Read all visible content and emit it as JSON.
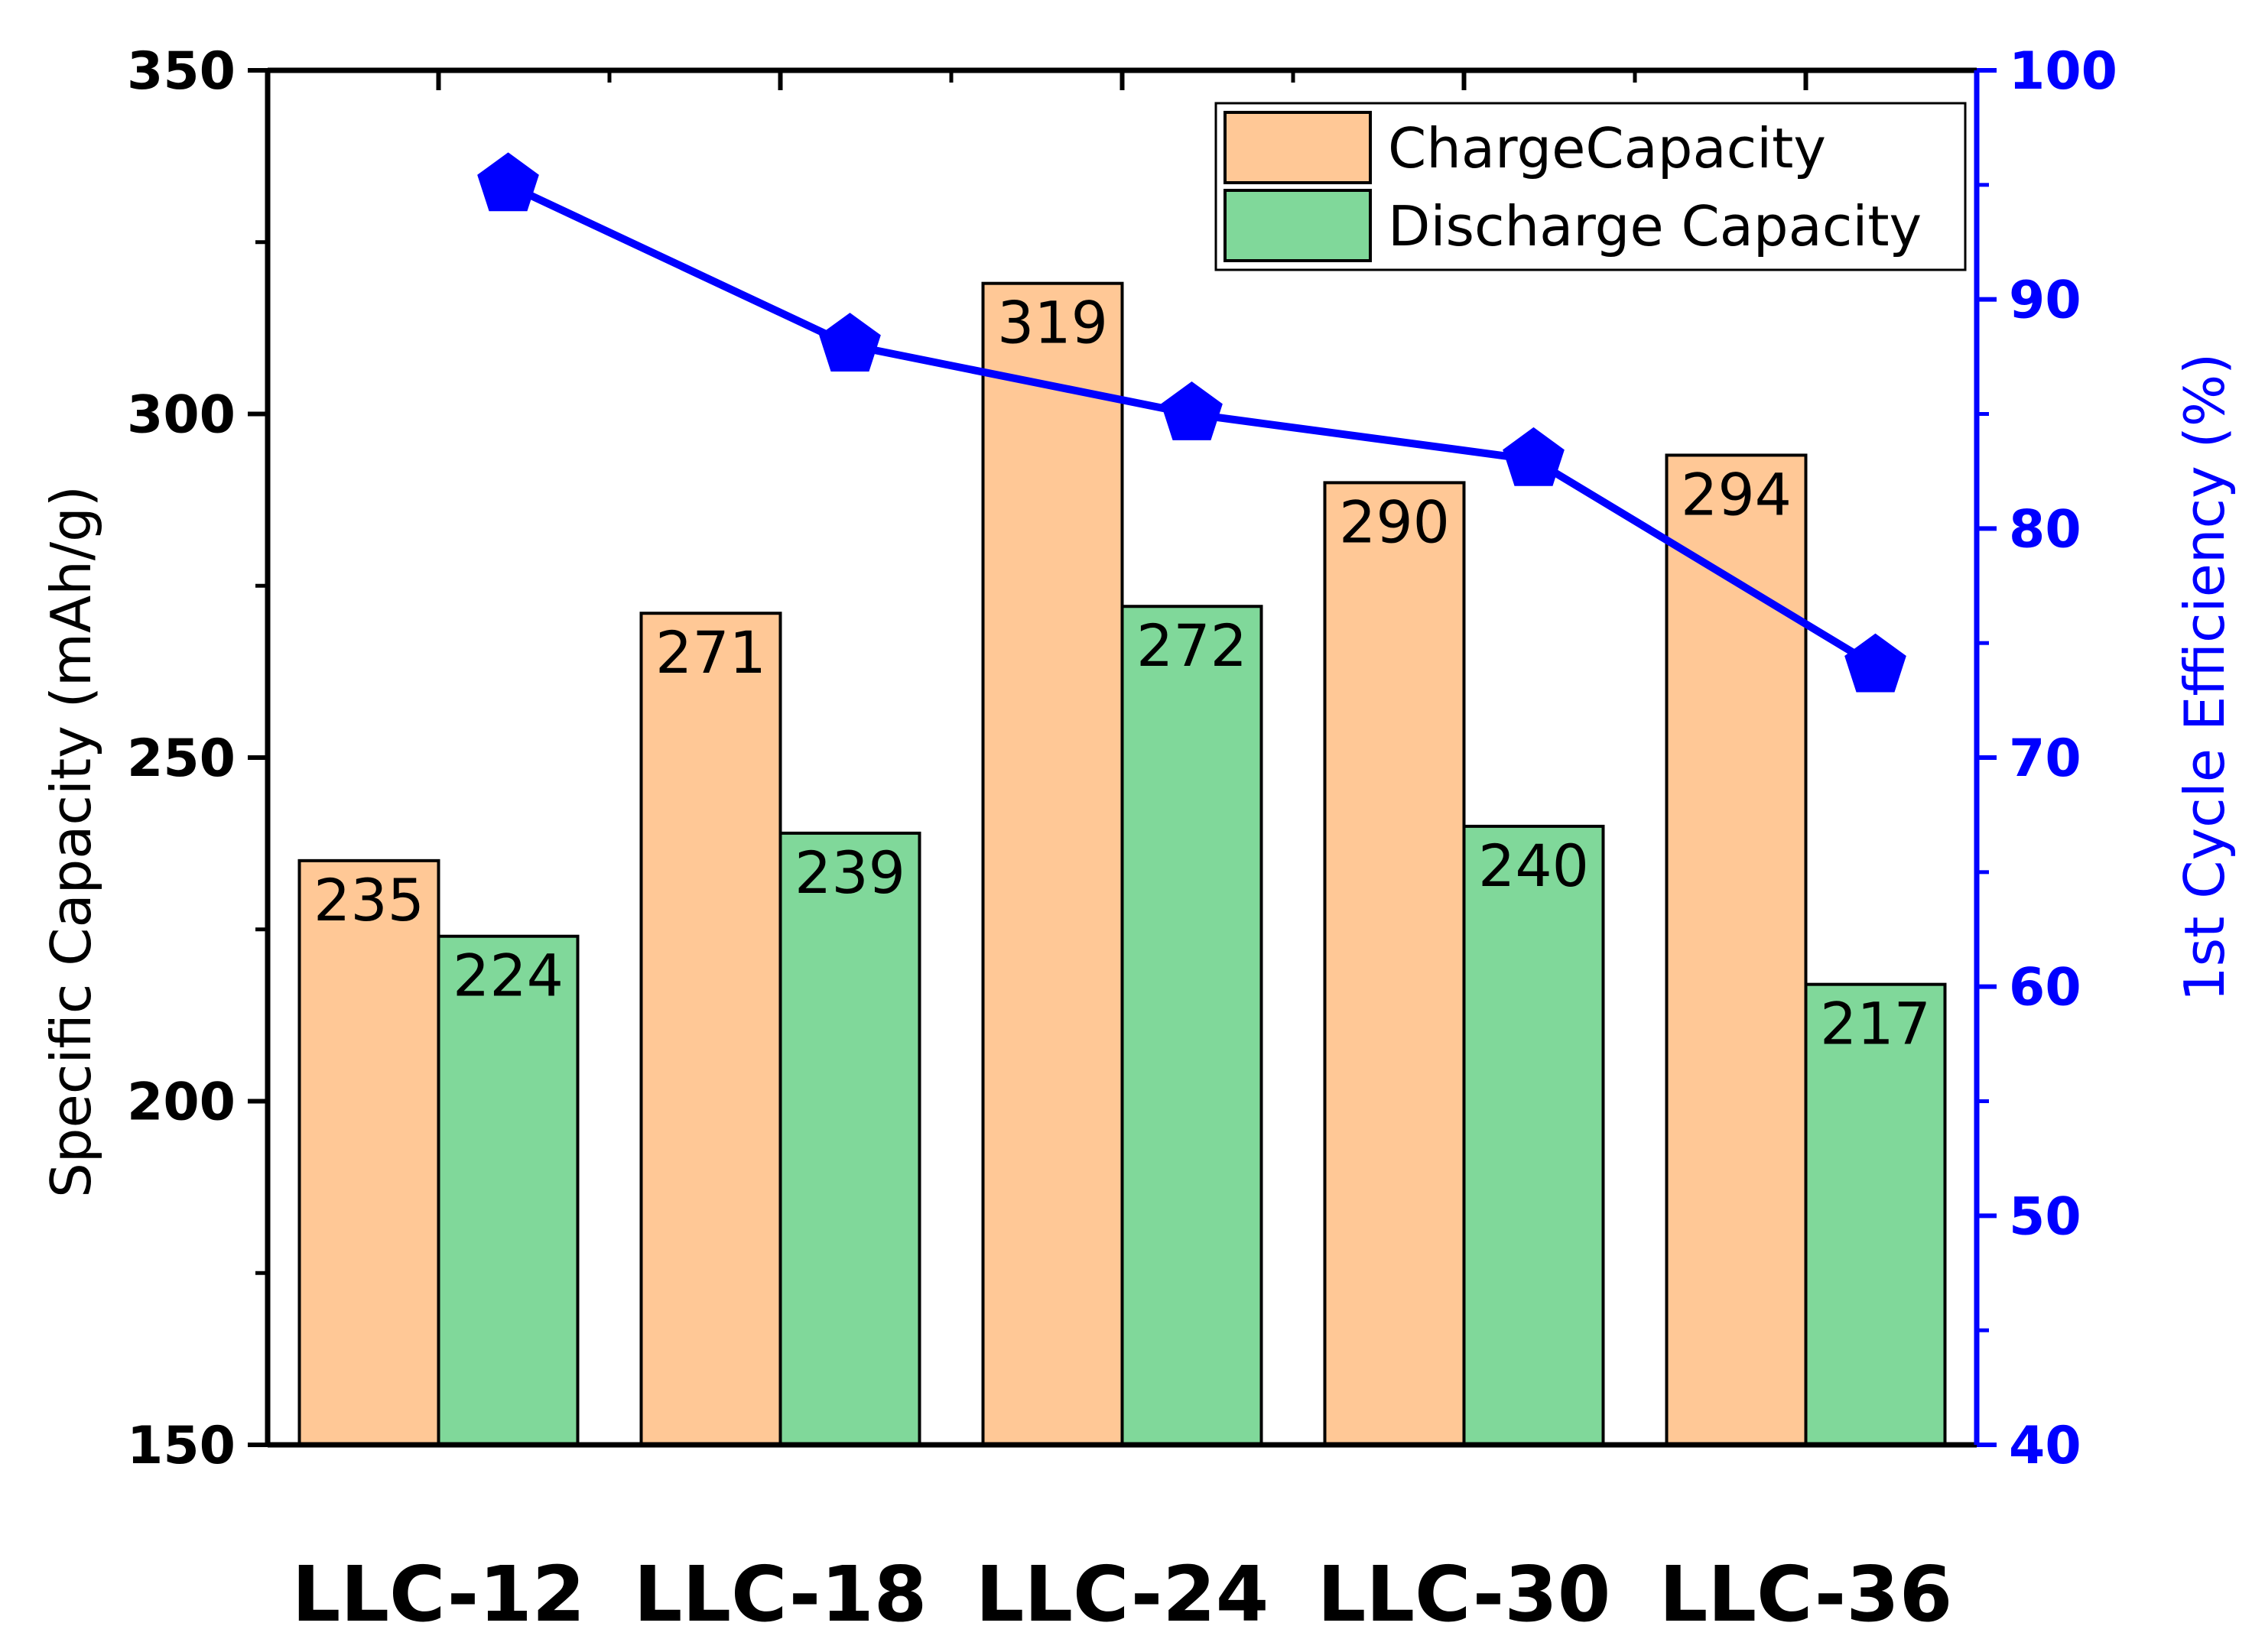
{
  "chart_data": {
    "type": "bar",
    "categories": [
      "LLC-12",
      "LLC-18",
      "LLC-24",
      "LLC-30",
      "LLC-36"
    ],
    "series": [
      {
        "name": "ChargeCapacity",
        "axis": "left",
        "color": "#ffc896",
        "values": [
          235,
          271,
          319,
          290,
          294
        ]
      },
      {
        "name": "Discharge Capacity",
        "axis": "left",
        "color": "#80d89a",
        "values": [
          224,
          239,
          272,
          240,
          217
        ]
      },
      {
        "name": "1st Cycle Efficiency",
        "type": "line",
        "axis": "right",
        "color": "#0000ff",
        "marker": "pentagon",
        "values": [
          95,
          88,
          85,
          83,
          74
        ]
      }
    ],
    "ylabel": "Specific Capacity (mAh/g)",
    "y2label": "1st Cycle Efficiency (%)",
    "ylim": [
      150,
      350
    ],
    "y2lim": [
      40,
      100
    ],
    "yticks": [
      150,
      200,
      250,
      300,
      350
    ],
    "y2ticks": [
      40,
      50,
      60,
      70,
      80,
      90,
      100
    ],
    "legend": {
      "position": "top-right",
      "entries": [
        "ChargeCapacity",
        "Discharge Capacity"
      ]
    },
    "grid": false
  }
}
